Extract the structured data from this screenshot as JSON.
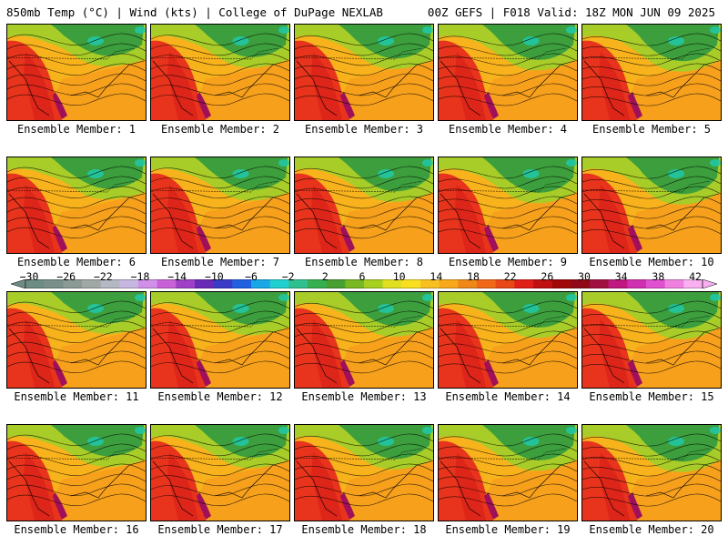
{
  "header": {
    "left_title": "850mb Temp (°C) | Wind (kts) | College of DuPage NEXLAB",
    "right_title": "00Z GEFS | F018 Valid: 18Z MON JUN 09 2025"
  },
  "members": [
    {
      "label": "Ensemble Member: 1"
    },
    {
      "label": "Ensemble Member: 2"
    },
    {
      "label": "Ensemble Member: 3"
    },
    {
      "label": "Ensemble Member: 4"
    },
    {
      "label": "Ensemble Member: 5"
    },
    {
      "label": "Ensemble Member: 6"
    },
    {
      "label": "Ensemble Member: 7"
    },
    {
      "label": "Ensemble Member: 8"
    },
    {
      "label": "Ensemble Member: 9"
    },
    {
      "label": "Ensemble Member: 10"
    },
    {
      "label": "Ensemble Member: 11"
    },
    {
      "label": "Ensemble Member: 12"
    },
    {
      "label": "Ensemble Member: 13"
    },
    {
      "label": "Ensemble Member: 14"
    },
    {
      "label": "Ensemble Member: 15"
    },
    {
      "label": "Ensemble Member: 16"
    },
    {
      "label": "Ensemble Member: 17"
    },
    {
      "label": "Ensemble Member: 18"
    },
    {
      "label": "Ensemble Member: 19"
    },
    {
      "label": "Ensemble Member: 20"
    }
  ],
  "colorbar": {
    "labels": [
      "−30",
      "−26",
      "−22",
      "−18",
      "−14",
      "−10",
      "−6",
      "−2",
      "2",
      "6",
      "10",
      "14",
      "18",
      "22",
      "26",
      "30",
      "34",
      "38",
      "42"
    ],
    "colors": [
      "#6d8c84",
      "#7a8f89",
      "#8c9a95",
      "#a0a8a6",
      "#b3b8c2",
      "#c6b6e0",
      "#d090e8",
      "#c860d8",
      "#a040c8",
      "#6a2ab8",
      "#3a3cc8",
      "#2060e0",
      "#18a8e8",
      "#20d0d0",
      "#30c090",
      "#34b050",
      "#48a030",
      "#78b820",
      "#a8d020",
      "#e0e020",
      "#f8e020",
      "#f8c020",
      "#f8a818",
      "#f08818",
      "#f06818",
      "#e84818",
      "#e02018",
      "#c01010",
      "#a00808",
      "#900818",
      "#a01040",
      "#c01880",
      "#d030b0",
      "#e050d0",
      "#f080e0",
      "#f8b0f0"
    ]
  },
  "map_colors": {
    "hot": "#e8341c",
    "warm": "#f6921e",
    "orange": "#f8b21c",
    "cool": "#a8cc28",
    "cold": "#3c9e3c",
    "coldest": "#20c8a8",
    "extreme": "#a0105a",
    "contour": "#000000"
  }
}
